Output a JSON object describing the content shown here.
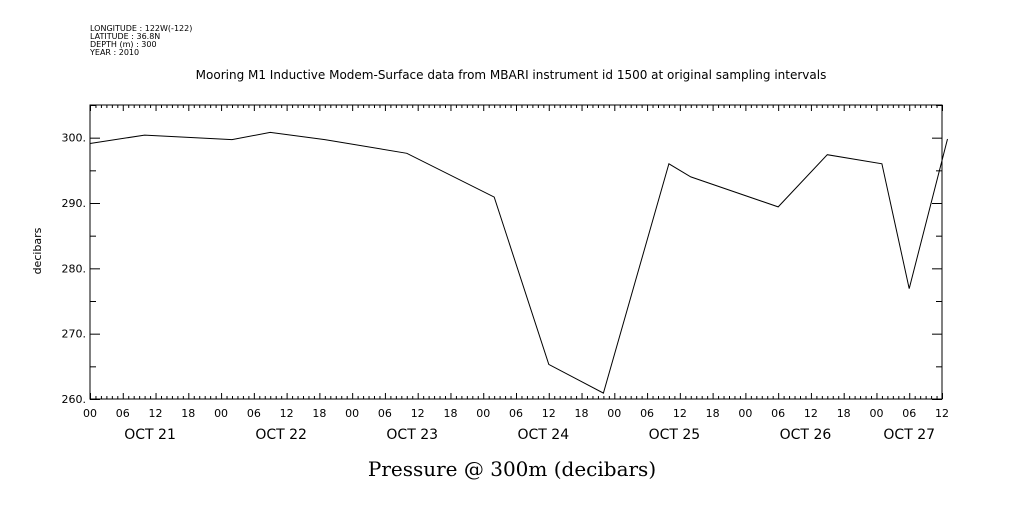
{
  "header": {
    "meta_lines": [
      "LONGITUDE : 122W(-122)",
      "LATITUDE : 36.8N",
      "DEPTH (m) : 300",
      "YEAR : 2010"
    ],
    "title": "Mooring M1 Inductive Modem-Surface data from MBARI instrument id 1500 at original sampling intervals"
  },
  "chart_data": {
    "type": "line",
    "title": "Mooring M1 Inductive Modem-Surface data from MBARI instrument id 1500 at original sampling intervals",
    "xlabel": "Pressure @ 300m (decibars)",
    "ylabel": "decibars",
    "xlim": [
      0,
      156
    ],
    "ylim": [
      260,
      305
    ],
    "x_unit": "hours from OCT 21 00",
    "y_ticks": [
      260,
      270,
      280,
      290,
      300
    ],
    "y_tick_labels": [
      "260.",
      "270.",
      "280.",
      "290.",
      "300."
    ],
    "x_tick_hours": [
      0,
      6,
      12,
      18,
      24,
      30,
      36,
      42,
      48,
      54,
      60,
      66,
      72,
      78,
      84,
      90,
      96,
      102,
      108,
      114,
      120,
      126,
      132,
      138,
      144,
      150,
      156
    ],
    "x_tick_labels": [
      "00",
      "06",
      "12",
      "18",
      "00",
      "06",
      "12",
      "18",
      "00",
      "06",
      "12",
      "18",
      "00",
      "06",
      "12",
      "18",
      "00",
      "06",
      "12",
      "18",
      "00",
      "06",
      "12",
      "18",
      "00",
      "06",
      "12"
    ],
    "day_labels": [
      {
        "text": "OCT 21",
        "hour": 11
      },
      {
        "text": "OCT 22",
        "hour": 35
      },
      {
        "text": "OCT 23",
        "hour": 59
      },
      {
        "text": "OCT 24",
        "hour": 83
      },
      {
        "text": "OCT 25",
        "hour": 107
      },
      {
        "text": "OCT 26",
        "hour": 131
      },
      {
        "text": "OCT 27",
        "hour": 150
      }
    ],
    "grid": false,
    "series": [
      {
        "x": [
          0,
          10,
          26,
          33,
          43,
          58,
          74,
          84,
          94,
          106,
          110,
          126,
          135,
          145,
          150,
          157
        ],
        "y": [
          299.1,
          300.4,
          299.7,
          300.8,
          299.7,
          297.6,
          290.9,
          265.3,
          260.9,
          296.0,
          294.0,
          289.4,
          297.4,
          296.0,
          276.9,
          299.8
        ]
      }
    ],
    "line_color": "#000000"
  }
}
